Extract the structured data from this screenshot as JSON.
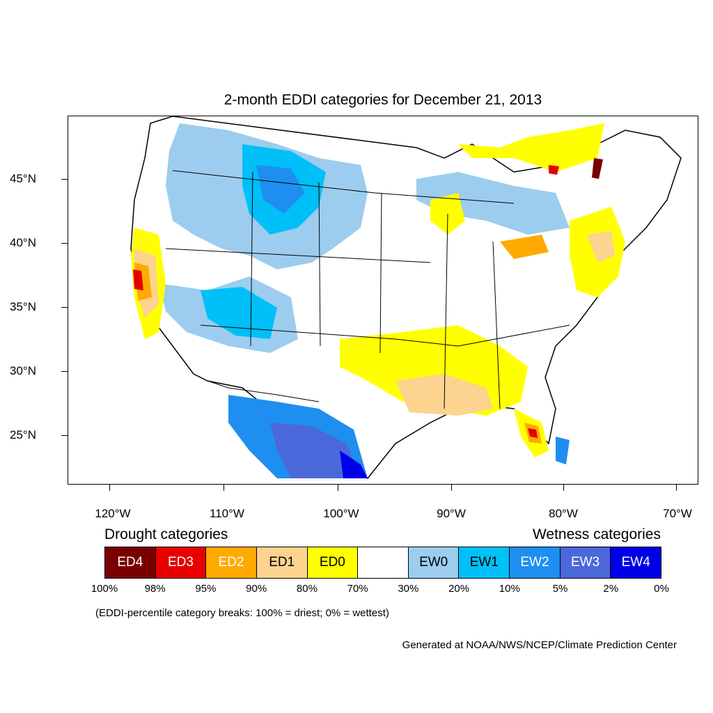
{
  "title": "2-month EDDI categories for December 21, 2013",
  "lat_labels": [
    "45°N",
    "40°N",
    "35°N",
    "30°N",
    "25°N"
  ],
  "lon_labels": [
    "120°W",
    "110°W",
    "100°W",
    "90°W",
    "80°W",
    "70°W"
  ],
  "legend": {
    "drought_heading": "Drought categories",
    "wetness_heading": "Wetness categories",
    "categories": [
      {
        "label": "ED4",
        "color": "#7a0000",
        "text_color": "#ffffff"
      },
      {
        "label": "ED3",
        "color": "#e60000",
        "text_color": "#ffffff"
      },
      {
        "label": "ED2",
        "color": "#ffaa00",
        "text_color": "#ffffff"
      },
      {
        "label": "ED1",
        "color": "#fcd38f",
        "text_color": "#000000"
      },
      {
        "label": "ED0",
        "color": "#ffff00",
        "text_color": "#000000"
      },
      {
        "label": "",
        "color": "#ffffff",
        "text_color": "#000000"
      },
      {
        "label": "EW0",
        "color": "#9ccdee",
        "text_color": "#000000"
      },
      {
        "label": "EW1",
        "color": "#00c0f7",
        "text_color": "#000000"
      },
      {
        "label": "EW2",
        "color": "#1e8ff0",
        "text_color": "#ffffff"
      },
      {
        "label": "EW3",
        "color": "#4b68db",
        "text_color": "#ffffff"
      },
      {
        "label": "EW4",
        "color": "#0000e8",
        "text_color": "#ffffff"
      }
    ],
    "percentiles": [
      "100%",
      "98%",
      "95%",
      "90%",
      "80%",
      "70%",
      "30%",
      "20%",
      "10%",
      "5%",
      "2%",
      "0%"
    ]
  },
  "note": "(EDDI-percentile category breaks: 100% = driest; 0% = wettest)",
  "credit": "Generated at NOAA/NWS/NCEP/Climate Prediction Center"
}
